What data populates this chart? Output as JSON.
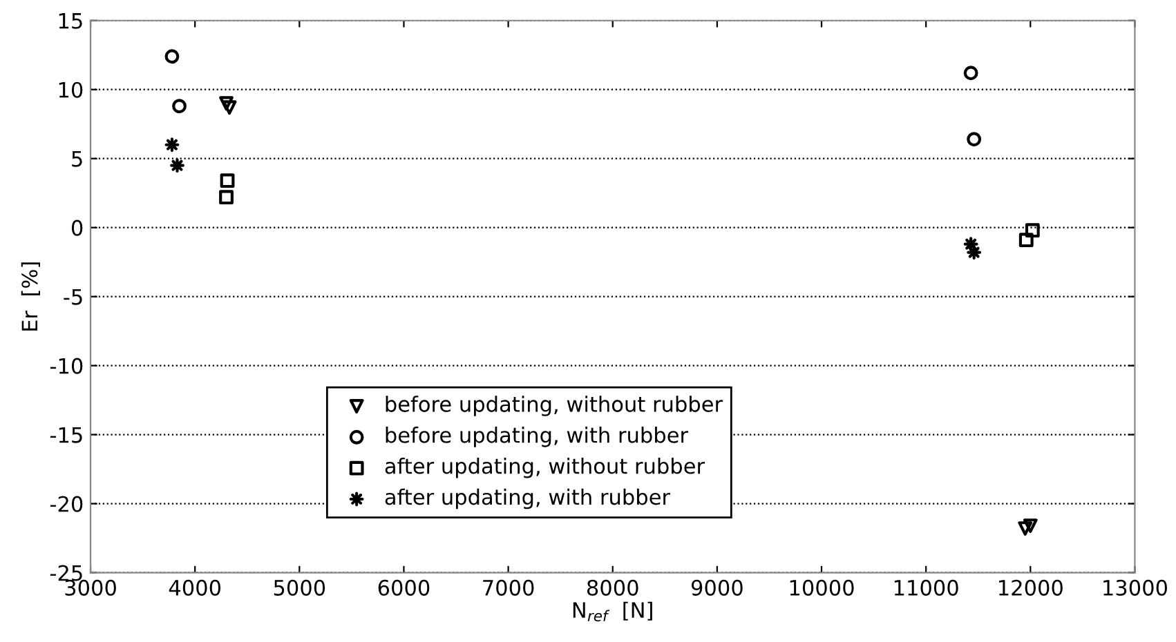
{
  "chart_data": {
    "type": "scatter",
    "xlabel": "N$_{ref}$  [N]",
    "ylabel": "Er  [%]",
    "xlim": [
      3000,
      13000
    ],
    "xticks": [
      3000,
      4000,
      5000,
      6000,
      7000,
      8000,
      9000,
      10000,
      11000,
      12000,
      13000
    ],
    "ylim": [
      -25,
      15
    ],
    "yticks": [
      -25,
      -20,
      -15,
      -10,
      -5,
      0,
      5,
      10,
      15
    ],
    "grid": "y",
    "legend": "bottom",
    "series": [
      {
        "name": "before updating, without rubber",
        "color": "#000000",
        "marker": "triangle",
        "x": [
          4300,
          4330,
          11950,
          12000
        ],
        "values": [
          9,
          8.7,
          -21.8,
          -21.6
        ]
      },
      {
        "name": "before updating, with rubber",
        "color": "#000000",
        "marker": "circle",
        "x": [
          3780,
          3850,
          11430,
          11460
        ],
        "values": [
          12.4,
          8.8,
          11.2,
          6.4
        ]
      },
      {
        "name": "after updating, without rubber",
        "color": "#000000",
        "marker": "square",
        "x": [
          4310,
          4300,
          11960,
          12020
        ],
        "values": [
          3.4,
          2.2,
          -0.9,
          -0.2
        ]
      },
      {
        "name": "after updating, with rubber",
        "color": "#000000",
        "marker": "star",
        "x": [
          3780,
          3830,
          11430,
          11460
        ],
        "values": [
          6,
          4.5,
          -1.2,
          -1.8
        ]
      }
    ]
  }
}
